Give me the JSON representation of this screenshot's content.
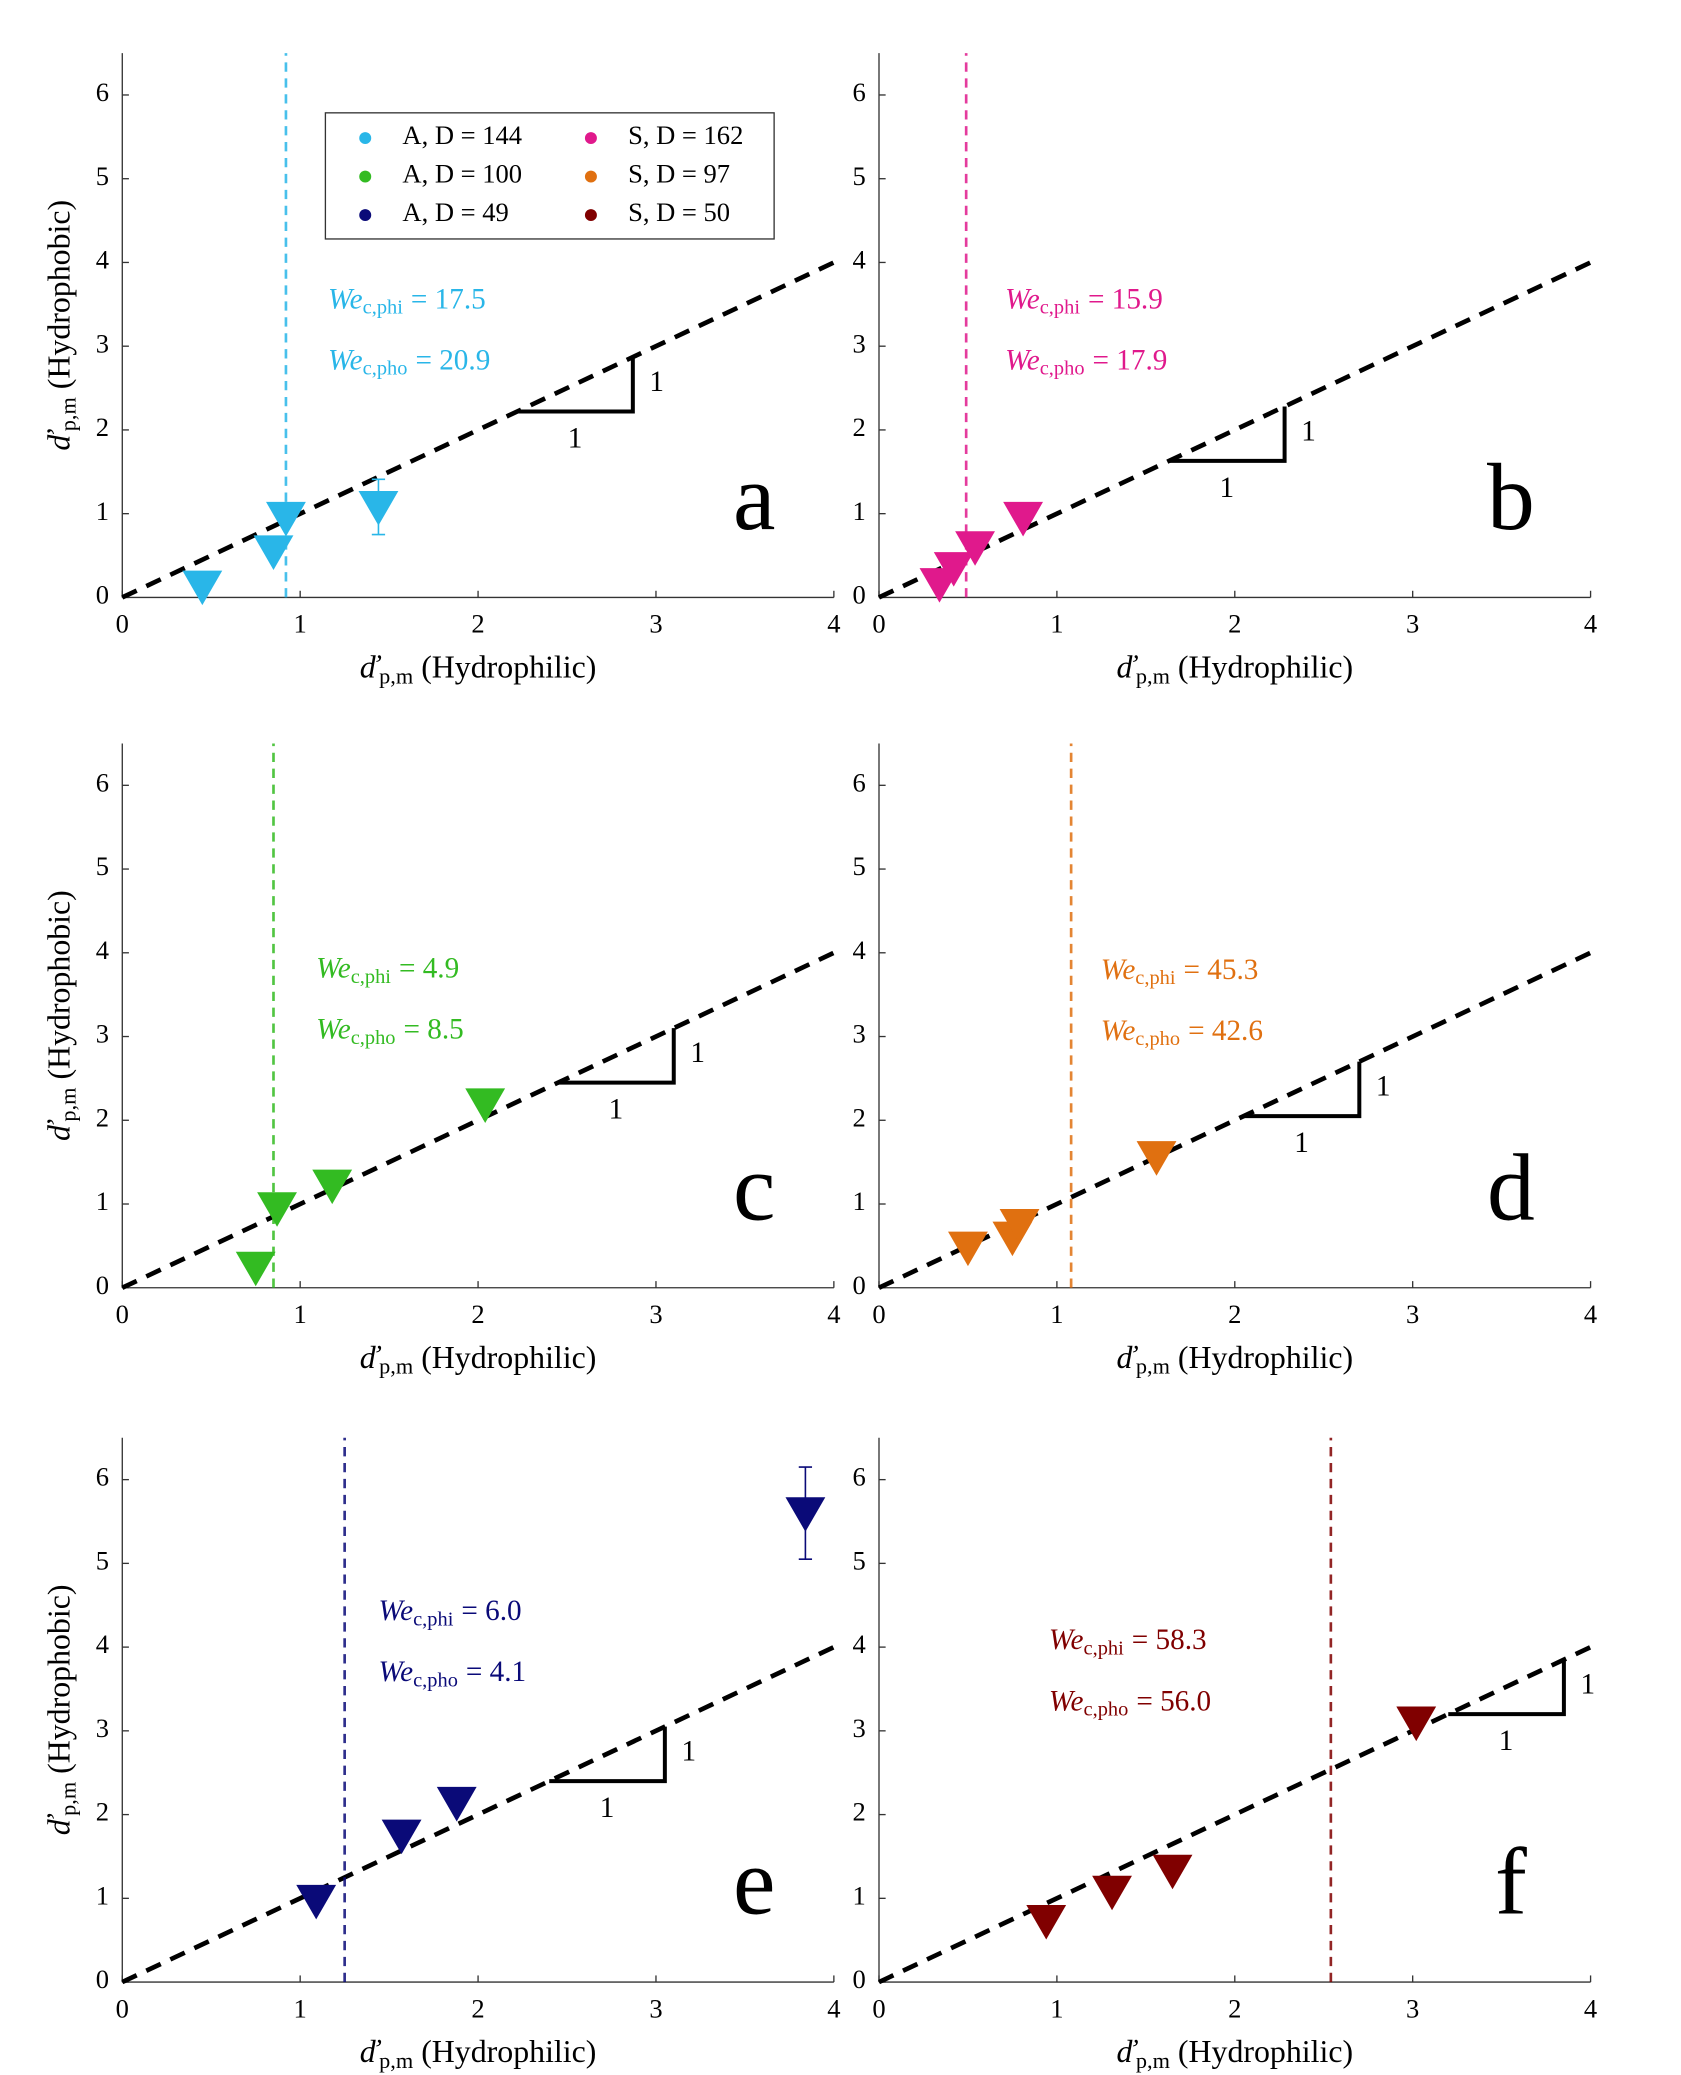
{
  "chart_data": [
    {
      "type": "scatter",
      "label": "a",
      "xlim": [
        0,
        4
      ],
      "ylim": [
        0,
        6.5
      ],
      "xticks": [
        0,
        1,
        2,
        3,
        4
      ],
      "yticks": [
        0,
        1,
        2,
        3,
        4,
        5,
        6
      ],
      "xlabel": {
        "symbol": "ď",
        "subscript": "p,m",
        "text": "(Hydrophilic)"
      },
      "ylabel": {
        "symbol": "ď",
        "subscript": "p,m",
        "text": "(Hydrophobic)"
      },
      "series": [
        {
          "name": "A, D = 144",
          "color": "#29b6e8",
          "x": [
            0.45,
            0.85,
            0.92,
            1.44
          ],
          "y": [
            0.13,
            0.55,
            0.95,
            1.08
          ],
          "y_error": [
            null,
            null,
            null,
            0.33
          ]
        }
      ],
      "threshold_x": 0.92,
      "reference_slope": 1,
      "annotations": [
        {
          "symbol": "We",
          "subscript": "c,phi",
          "text": "= 17.5"
        },
        {
          "symbol": "We",
          "subscript": "c,pho",
          "text": "= 20.9"
        }
      ],
      "slope_labels": [
        "1",
        "1"
      ],
      "legend": true
    },
    {
      "type": "scatter",
      "label": "b",
      "xlim": [
        0,
        4
      ],
      "ylim": [
        0,
        6.5
      ],
      "xticks": [
        0,
        1,
        2,
        3,
        4
      ],
      "yticks": [
        0,
        1,
        2,
        3,
        4,
        5,
        6
      ],
      "xlabel": {
        "symbol": "ď",
        "subscript": "p,m",
        "text": "(Hydrophilic)"
      },
      "series": [
        {
          "name": "S, D = 162",
          "color": "#e0198c",
          "x": [
            0.34,
            0.42,
            0.54,
            0.81
          ],
          "y": [
            0.16,
            0.35,
            0.6,
            0.95
          ]
        }
      ],
      "threshold_x": 0.49,
      "reference_slope": 1,
      "annotations": [
        {
          "symbol": "We",
          "subscript": "c,phi",
          "text": "= 15.9"
        },
        {
          "symbol": "We",
          "subscript": "c,pho",
          "text": "= 17.9"
        }
      ],
      "slope_labels": [
        "1",
        "1"
      ]
    },
    {
      "type": "scatter",
      "label": "c",
      "xlim": [
        0,
        4
      ],
      "ylim": [
        0,
        6.5
      ],
      "xticks": [
        0,
        1,
        2,
        3,
        4
      ],
      "yticks": [
        0,
        1,
        2,
        3,
        4,
        5,
        6
      ],
      "xlabel": {
        "symbol": "ď",
        "subscript": "p,m",
        "text": "(Hydrophilic)"
      },
      "ylabel": {
        "symbol": "ď",
        "subscript": "p,m",
        "text": "(Hydrophobic)"
      },
      "series": [
        {
          "name": "A, D = 100",
          "color": "#33bb22",
          "x": [
            0.75,
            0.87,
            1.18,
            2.04
          ],
          "y": [
            0.24,
            0.95,
            1.22,
            2.19
          ]
        }
      ],
      "threshold_x": 0.85,
      "reference_slope": 1,
      "annotations": [
        {
          "symbol": "We",
          "subscript": "c,phi",
          "text": "= 4.9"
        },
        {
          "symbol": "We",
          "subscript": "c,pho",
          "text": "= 8.5"
        }
      ],
      "slope_labels": [
        "1",
        "1"
      ]
    },
    {
      "type": "scatter",
      "label": "d",
      "xlim": [
        0,
        4
      ],
      "ylim": [
        0,
        6.5
      ],
      "xticks": [
        0,
        1,
        2,
        3,
        4
      ],
      "yticks": [
        0,
        1,
        2,
        3,
        4,
        5,
        6
      ],
      "xlabel": {
        "symbol": "ď",
        "subscript": "p,m",
        "text": "(Hydrophilic)"
      },
      "series": [
        {
          "name": "S, D = 97",
          "color": "#e07010",
          "x": [
            0.5,
            0.75,
            0.79,
            1.56
          ],
          "y": [
            0.48,
            0.6,
            0.75,
            1.56
          ]
        }
      ],
      "threshold_x": 1.08,
      "reference_slope": 1,
      "annotations": [
        {
          "symbol": "We",
          "subscript": "c,phi",
          "text": "= 45.3"
        },
        {
          "symbol": "We",
          "subscript": "c,pho",
          "text": "= 42.6"
        }
      ],
      "slope_labels": [
        "1",
        "1"
      ]
    },
    {
      "type": "scatter",
      "label": "e",
      "xlim": [
        0,
        4
      ],
      "ylim": [
        0,
        6.5
      ],
      "xticks": [
        0,
        1,
        2,
        3,
        4
      ],
      "yticks": [
        0,
        1,
        2,
        3,
        4,
        5,
        6
      ],
      "xlabel": {
        "symbol": "ď",
        "subscript": "p,m",
        "text": "(Hydrophilic)"
      },
      "ylabel": {
        "symbol": "ď",
        "subscript": "p,m",
        "text": "(Hydrophobic)"
      },
      "series": [
        {
          "name": "A, D = 49",
          "color": "#0a0a78",
          "x": [
            1.09,
            1.57,
            1.88,
            3.84
          ],
          "y": [
            0.97,
            1.75,
            2.14,
            5.6
          ],
          "y_error": [
            null,
            null,
            null,
            0.55
          ]
        }
      ],
      "threshold_x": 1.25,
      "reference_slope": 1,
      "annotations": [
        {
          "symbol": "We",
          "subscript": "c,phi",
          "text": "= 6.0"
        },
        {
          "symbol": "We",
          "subscript": "c,pho",
          "text": "= 4.1"
        }
      ],
      "slope_labels": [
        "1",
        "1"
      ]
    },
    {
      "type": "scatter",
      "label": "f",
      "xlim": [
        0,
        4
      ],
      "ylim": [
        0,
        6.5
      ],
      "xticks": [
        0,
        1,
        2,
        3,
        4
      ],
      "yticks": [
        0,
        1,
        2,
        3,
        4,
        5,
        6
      ],
      "xlabel": {
        "symbol": "ď",
        "subscript": "p,m",
        "text": "(Hydrophilic)"
      },
      "series": [
        {
          "name": "S, D = 50",
          "color": "#800000",
          "x": [
            0.94,
            1.31,
            1.65,
            3.02
          ],
          "y": [
            0.73,
            1.08,
            1.33,
            3.1
          ]
        }
      ],
      "threshold_x": 2.54,
      "reference_slope": 1,
      "annotations": [
        {
          "symbol": "We",
          "subscript": "c,phi",
          "text": "= 58.3"
        },
        {
          "symbol": "We",
          "subscript": "c,pho",
          "text": "= 56.0"
        }
      ],
      "slope_labels": [
        "1",
        "1"
      ]
    }
  ]
}
